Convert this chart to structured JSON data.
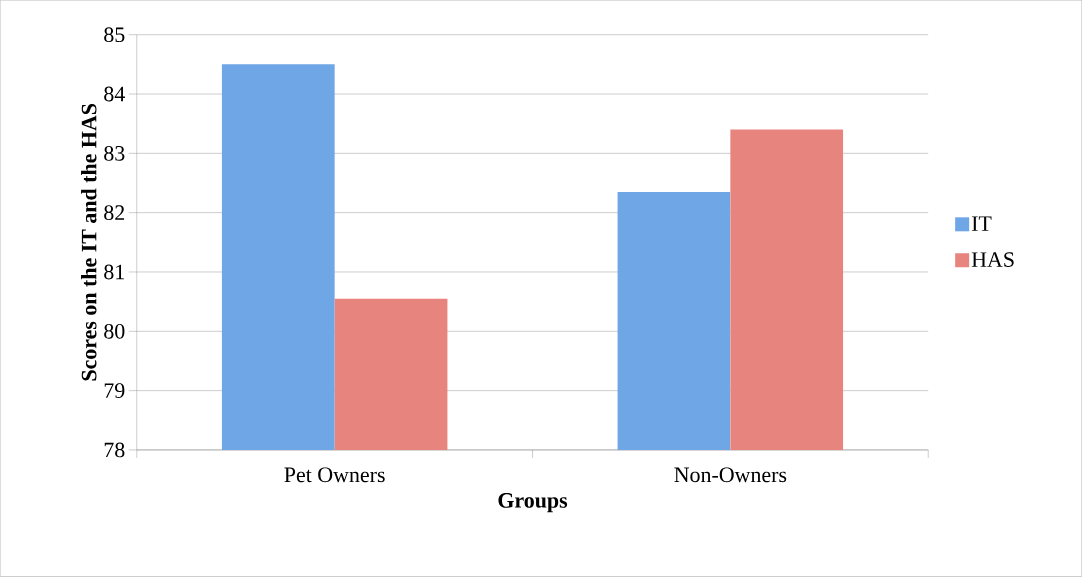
{
  "chart_data": {
    "type": "bar",
    "xlabel": "Groups",
    "ylabel": "Scores on the IT and the HAS",
    "categories": [
      "Pet Owners",
      "Non-Owners"
    ],
    "series": [
      {
        "name": "IT",
        "color": "#6ea6e6",
        "values": [
          84.5,
          82.35
        ]
      },
      {
        "name": "HAS",
        "color": "#e8847e",
        "values": [
          80.55,
          83.4
        ]
      }
    ],
    "ylim": [
      78,
      85
    ],
    "yticks": [
      78,
      79,
      80,
      81,
      82,
      83,
      84,
      85
    ],
    "grid": "y",
    "legend": "right"
  }
}
